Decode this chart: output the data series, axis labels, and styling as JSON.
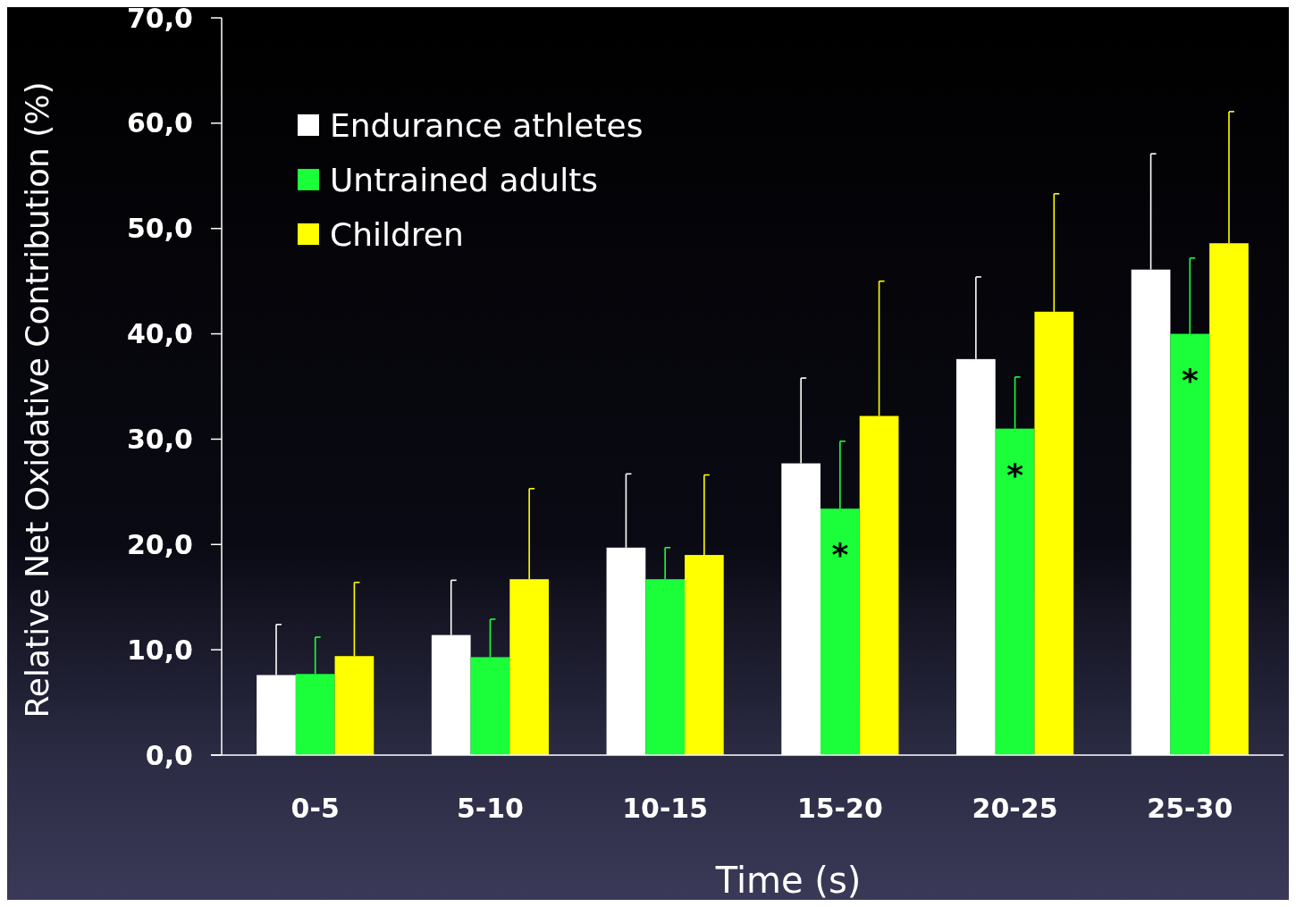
{
  "chart_data": {
    "type": "bar",
    "xlabel": "Time (s)",
    "ylabel": "Relative Net Oxidative Contribution (%)",
    "categories": [
      "0-5",
      "5-10",
      "10-15",
      "15-20",
      "20-25",
      "25-30"
    ],
    "series": [
      {
        "name": "Endurance athletes",
        "color": "#ffffff",
        "values": [
          7.6,
          11.4,
          19.7,
          27.7,
          37.6,
          46.1
        ],
        "errors": [
          [
            7.6,
            12.4
          ],
          [
            11.4,
            16.6
          ],
          [
            19.7,
            26.7
          ],
          [
            27.7,
            35.8
          ],
          [
            37.6,
            45.4
          ],
          [
            46.1,
            57.1
          ]
        ]
      },
      {
        "name": "Untrained adults",
        "color": "#1aff3a",
        "values": [
          7.7,
          9.3,
          16.7,
          23.4,
          31.0,
          40.0
        ],
        "errors": [
          [
            7.7,
            11.2
          ],
          [
            9.3,
            12.9
          ],
          [
            16.7,
            19.7
          ],
          [
            23.4,
            29.8
          ],
          [
            31.0,
            35.9
          ],
          [
            40.0,
            47.2
          ]
        ]
      },
      {
        "name": "Children",
        "color": "#ffff00",
        "values": [
          9.4,
          16.7,
          19.0,
          32.2,
          42.1,
          48.6
        ],
        "errors": [
          [
            9.4,
            16.4
          ],
          [
            16.7,
            25.3
          ],
          [
            19.0,
            26.6
          ],
          [
            32.2,
            45.0
          ],
          [
            42.1,
            53.3
          ],
          [
            48.6,
            61.1
          ]
        ]
      }
    ],
    "ylim": [
      0,
      70
    ],
    "yticks": [
      {
        "value": 0,
        "label": "0,0"
      },
      {
        "value": 10,
        "label": "10,0"
      },
      {
        "value": 20,
        "label": "20,0"
      },
      {
        "value": 30,
        "label": "30,0"
      },
      {
        "value": 40,
        "label": "40,0"
      },
      {
        "value": 50,
        "label": "50,0"
      },
      {
        "value": 60,
        "label": "60,0"
      },
      {
        "value": 70,
        "label": "70,0"
      }
    ],
    "annotations": [
      {
        "text": "*",
        "x": "15-20",
        "y": 23.4
      },
      {
        "text": "*",
        "x": "20-25",
        "y": 31.0
      },
      {
        "text": "*",
        "x": "25-30",
        "y": 40.0
      }
    ],
    "legend": "top left",
    "grid": false
  }
}
